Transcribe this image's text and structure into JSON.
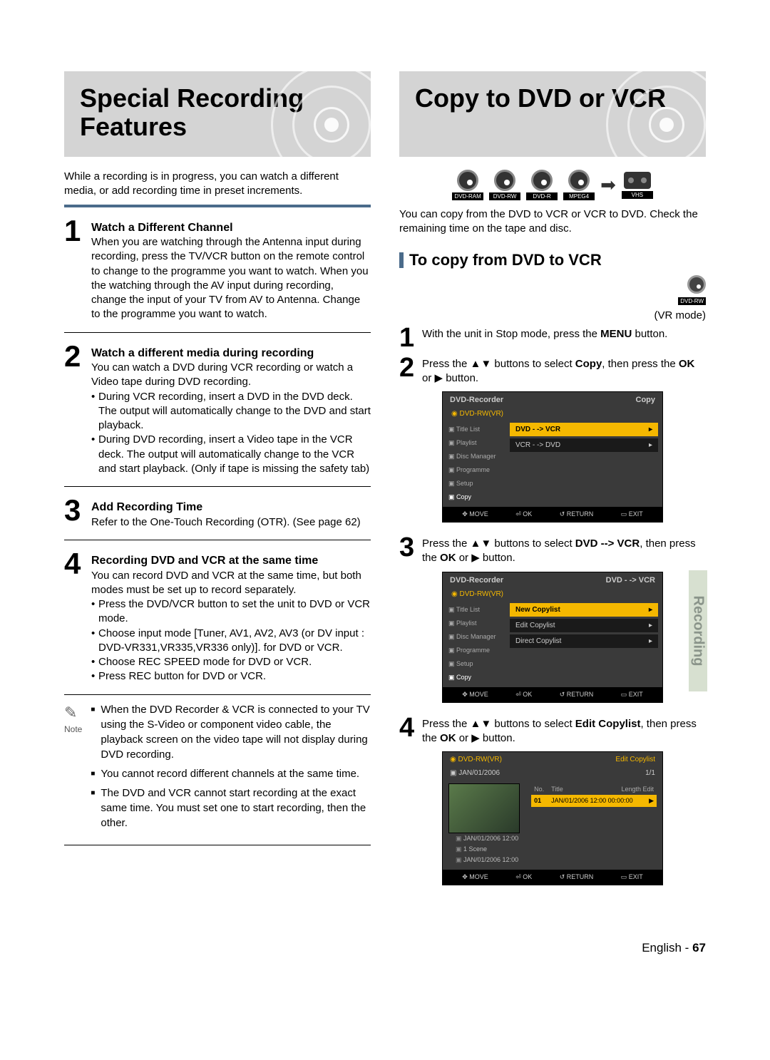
{
  "left": {
    "title_line1": "Special Recording",
    "title_line2": "Features",
    "intro": "While a recording is in progress, you can watch a different media, or add recording time in preset increments.",
    "steps": [
      {
        "n": "1",
        "title": "Watch a Different Channel",
        "text": "When you are watching through the Antenna input during recording, press the TV/VCR button on the remote control to change to the programme you want to watch. When you the watching through the AV input during recording, change the input of your TV from AV to Antenna. Change to the programme you want to watch."
      },
      {
        "n": "2",
        "title": "Watch a different media during recording",
        "text": "You can watch a DVD during VCR recording or watch a Video tape during DVD recording.",
        "bullets": [
          "During VCR recording, insert a DVD in the DVD deck. The output will automatically change to the DVD and start playback.",
          "During DVD recording, insert a Video tape in the VCR deck. The output will automatically change to the VCR and start playback. (Only if tape is missing the safety tab)"
        ]
      },
      {
        "n": "3",
        "title": "Add Recording Time",
        "text": "Refer to the One-Touch Recording (OTR). (See page 62)"
      },
      {
        "n": "4",
        "title": "Recording DVD and VCR at the same time",
        "text": "You can record DVD and VCR at the same time, but both modes must be set up to record separately.",
        "bullets": [
          "Press the DVD/VCR button to set the unit to DVD or VCR mode.",
          "Choose input mode [Tuner, AV1, AV2, AV3 (or DV input : DVD-VR331,VR335,VR336 only)]. for DVD or VCR.",
          "Choose REC SPEED mode for DVD or VCR.",
          "Press REC button for DVD or VCR."
        ]
      }
    ],
    "note_label": "Note",
    "notes": [
      "When the DVD Recorder & VCR is connected to your TV using the S-Video or component video cable, the playback screen on the video tape will not display during DVD recording.",
      "You cannot record different channels at the same time.",
      "The DVD and VCR cannot start recording at the exact same time. You must set one to start recording, then the other."
    ]
  },
  "right": {
    "title": "Copy to DVD or VCR",
    "disc_labels": [
      "DVD-RAM",
      "DVD-RW",
      "DVD-R",
      "MPEG4"
    ],
    "vhs_label": "VHS",
    "intro": "You can copy from the DVD to VCR or VCR to DVD. Check the remaining time on the tape and disc.",
    "section_heading": "To copy from DVD to VCR",
    "vr_mode_badge": "DVD-RW",
    "vr_mode_text": "(VR mode)",
    "steps": [
      {
        "n": "1",
        "html": "With the unit in Stop mode, press the <b>MENU</b> button."
      },
      {
        "n": "2",
        "html": "Press the ▲▼ buttons to select <b>Copy</b>, then press the <b>OK</b> or ▶ button."
      },
      {
        "n": "3",
        "html": "Press the ▲▼ buttons to select <b>DVD --> VCR</b>, then press the <b>OK</b> or ▶ button."
      },
      {
        "n": "4",
        "html": "Press the ▲▼ buttons to select <b>Edit Copylist</b>, then press the <b>OK</b> or ▶ button."
      }
    ],
    "osd_common": {
      "top_left": "DVD-Recorder",
      "subtop": "DVD-RW(VR)",
      "left_menu": [
        "Title List",
        "Playlist",
        "Disc Manager",
        "Programme",
        "Setup",
        "Copy"
      ],
      "foot": [
        "✥ MOVE",
        "⏎ OK",
        "↺ RETURN",
        "▭ EXIT"
      ]
    },
    "osd1": {
      "top_right": "Copy",
      "options": [
        {
          "label": "DVD - -> VCR",
          "hl": true
        },
        {
          "label": "VCR - -> DVD",
          "hl": false
        }
      ]
    },
    "osd2": {
      "top_right": "DVD - -> VCR",
      "options": [
        {
          "label": "New Copylist",
          "hl": true
        },
        {
          "label": "Edit Copylist",
          "hl": false
        },
        {
          "label": "Direct Copylist",
          "hl": false
        }
      ]
    },
    "osd3": {
      "top_left": "DVD-RW(VR)",
      "top_right": "Edit Copylist",
      "date_row_left": "JAN/01/2006",
      "date_row_right": "1/1",
      "list_headers": [
        "No.",
        "Title",
        "Length Edit"
      ],
      "list_row": [
        "01",
        "JAN/01/2006 12:00 00:00:00",
        "▶"
      ],
      "meta": [
        "JAN/01/2006 12:00",
        "1 Scene",
        "JAN/01/2006 12:00"
      ]
    }
  },
  "side_tab": "Recording",
  "footer_lang": "English - ",
  "footer_page": "67",
  "colors": {
    "banner_bg": "#d4d4d4",
    "accent_bar": "#4a6b8a",
    "osd_bg": "#3a3a3a",
    "osd_highlight": "#f5b800",
    "side_tab_bg": "#d7e0d0",
    "side_tab_text": "#8a948a"
  }
}
